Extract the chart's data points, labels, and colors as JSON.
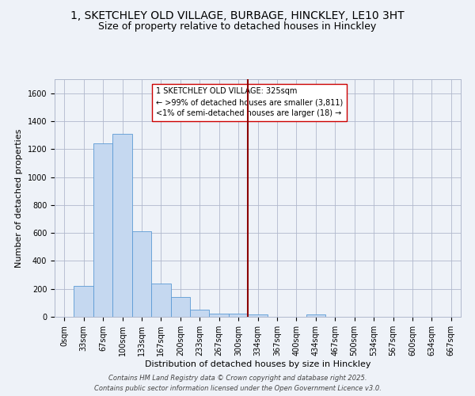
{
  "title_line1": "1, SKETCHLEY OLD VILLAGE, BURBAGE, HINCKLEY, LE10 3HT",
  "title_line2": "Size of property relative to detached houses in Hinckley",
  "xlabel": "Distribution of detached houses by size in Hinckley",
  "ylabel": "Number of detached properties",
  "footer_line1": "Contains HM Land Registry data © Crown copyright and database right 2025.",
  "footer_line2": "Contains public sector information licensed under the Open Government Licence v3.0.",
  "bar_labels": [
    "0sqm",
    "33sqm",
    "67sqm",
    "100sqm",
    "133sqm",
    "167sqm",
    "200sqm",
    "233sqm",
    "267sqm",
    "300sqm",
    "334sqm",
    "367sqm",
    "400sqm",
    "434sqm",
    "467sqm",
    "500sqm",
    "534sqm",
    "567sqm",
    "600sqm",
    "634sqm",
    "667sqm"
  ],
  "bar_values": [
    0,
    220,
    1240,
    1310,
    610,
    240,
    140,
    50,
    20,
    20,
    15,
    0,
    0,
    15,
    0,
    0,
    0,
    0,
    0,
    0,
    0
  ],
  "bar_color": "#c5d8f0",
  "bar_edge_color": "#5b9bd5",
  "annotation_text_line1": "1 SKETCHLEY OLD VILLAGE: 325sqm",
  "annotation_text_line2": "← >99% of detached houses are smaller (3,811)",
  "annotation_text_line3": "<1% of semi-detached houses are larger (18) →",
  "vline_color": "#8b0000",
  "vline_index": 9.5,
  "ylim": [
    0,
    1700
  ],
  "yticks": [
    0,
    200,
    400,
    600,
    800,
    1000,
    1200,
    1400,
    1600
  ],
  "background_color": "#eef2f8",
  "grid_color": "#b0b8cc",
  "title_fontsize": 10,
  "subtitle_fontsize": 9,
  "axis_label_fontsize": 8,
  "tick_fontsize": 7,
  "annotation_fontsize": 7,
  "footer_fontsize": 6
}
